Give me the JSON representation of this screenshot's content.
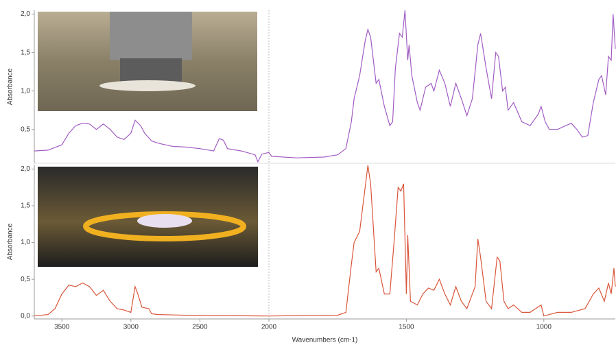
{
  "chart_data": [
    {
      "type": "line",
      "ylabel": "Absorbance",
      "color": "#a15cc4",
      "xlim": [
        3700,
        740
      ],
      "x_scale_break": 2000,
      "ylim": [
        0.06,
        2.05
      ],
      "yticks": [
        {
          "value": 0.5,
          "label": "0,5"
        },
        {
          "value": 1.0,
          "label": "1,0"
        },
        {
          "value": 1.5,
          "label": "1,5"
        },
        {
          "value": 2.0,
          "label": "2,0"
        }
      ],
      "x": [
        3700,
        3600,
        3500,
        3450,
        3400,
        3350,
        3300,
        3250,
        3200,
        3150,
        3100,
        3050,
        3000,
        2970,
        2930,
        2900,
        2850,
        2800,
        2700,
        2600,
        2500,
        2400,
        2360,
        2330,
        2300,
        2200,
        2100,
        2080,
        2050,
        2000,
        1990,
        1900,
        1800,
        1750,
        1720,
        1700,
        1690,
        1670,
        1650,
        1640,
        1630,
        1610,
        1600,
        1580,
        1560,
        1550,
        1540,
        1525,
        1515,
        1505,
        1495,
        1490,
        1480,
        1460,
        1450,
        1430,
        1410,
        1400,
        1380,
        1360,
        1340,
        1320,
        1300,
        1280,
        1260,
        1240,
        1230,
        1210,
        1190,
        1175,
        1165,
        1150,
        1140,
        1130,
        1110,
        1080,
        1050,
        1020,
        1010,
        995,
        980,
        950,
        920,
        900,
        880,
        860,
        840,
        820,
        800,
        790,
        775,
        765,
        755,
        748,
        740
      ],
      "values": [
        0.22,
        0.23,
        0.3,
        0.45,
        0.55,
        0.58,
        0.57,
        0.5,
        0.57,
        0.5,
        0.4,
        0.37,
        0.45,
        0.62,
        0.55,
        0.45,
        0.35,
        0.32,
        0.28,
        0.27,
        0.25,
        0.22,
        0.38,
        0.36,
        0.25,
        0.22,
        0.17,
        0.08,
        0.18,
        0.2,
        0.15,
        0.13,
        0.14,
        0.17,
        0.25,
        0.6,
        0.9,
        1.2,
        1.65,
        1.8,
        1.7,
        1.1,
        1.15,
        0.8,
        0.55,
        0.6,
        1.3,
        1.75,
        1.7,
        2.05,
        1.4,
        1.6,
        1.2,
        0.85,
        0.75,
        1.05,
        1.1,
        1.0,
        1.27,
        1.1,
        0.8,
        1.1,
        0.9,
        0.68,
        0.9,
        1.6,
        1.75,
        1.3,
        0.9,
        1.5,
        1.45,
        1.0,
        1.05,
        0.75,
        0.85,
        0.6,
        0.55,
        0.7,
        0.8,
        0.6,
        0.5,
        0.5,
        0.55,
        0.58,
        0.5,
        0.4,
        0.42,
        0.85,
        1.15,
        1.2,
        0.95,
        1.45,
        1.4,
        2.0,
        1.55
      ]
    },
    {
      "type": "line",
      "ylabel": "Absorbance",
      "xlabel": "Wavenumbers (cm-1)",
      "color": "#d9553a",
      "xlim": [
        3700,
        740
      ],
      "x_scale_break": 2000,
      "xticks": [
        3500,
        3000,
        2500,
        2000,
        1500,
        1000
      ],
      "ylim": [
        -0.04,
        2.06
      ],
      "yticks": [
        {
          "value": 0.0,
          "label": "0,0"
        },
        {
          "value": 0.5,
          "label": "0,5"
        },
        {
          "value": 1.0,
          "label": "1,0"
        },
        {
          "value": 1.5,
          "label": "1,5"
        },
        {
          "value": 2.0,
          "label": "2,0"
        }
      ],
      "x": [
        3700,
        3600,
        3550,
        3500,
        3450,
        3400,
        3350,
        3300,
        3250,
        3200,
        3150,
        3100,
        3050,
        3000,
        2970,
        2950,
        2920,
        2870,
        2850,
        2800,
        2600,
        2000,
        1750,
        1720,
        1700,
        1690,
        1670,
        1650,
        1640,
        1630,
        1610,
        1600,
        1580,
        1560,
        1545,
        1530,
        1520,
        1510,
        1500,
        1495,
        1485,
        1460,
        1440,
        1420,
        1400,
        1380,
        1360,
        1340,
        1320,
        1300,
        1280,
        1250,
        1240,
        1230,
        1210,
        1190,
        1170,
        1160,
        1145,
        1130,
        1110,
        1080,
        1050,
        1010,
        1000,
        980,
        950,
        900,
        850,
        820,
        800,
        780,
        765,
        755,
        745,
        740
      ],
      "values": [
        0.0,
        0.02,
        0.1,
        0.3,
        0.42,
        0.4,
        0.45,
        0.4,
        0.28,
        0.35,
        0.2,
        0.1,
        0.08,
        0.05,
        0.4,
        0.3,
        0.12,
        0.1,
        0.03,
        0.02,
        0.01,
        0.0,
        0.01,
        0.05,
        0.7,
        1.0,
        1.15,
        1.75,
        2.05,
        1.8,
        0.6,
        0.65,
        0.3,
        0.3,
        1.0,
        1.75,
        1.7,
        1.8,
        0.3,
        1.1,
        0.2,
        0.15,
        0.3,
        0.38,
        0.35,
        0.5,
        0.3,
        0.15,
        0.4,
        0.2,
        0.1,
        0.4,
        1.05,
        0.8,
        0.2,
        0.1,
        0.8,
        0.75,
        0.2,
        0.1,
        0.15,
        0.05,
        0.05,
        0.15,
        0.0,
        0.02,
        0.05,
        0.05,
        0.1,
        0.3,
        0.38,
        0.2,
        0.45,
        0.3,
        0.65,
        0.4
      ]
    }
  ]
}
